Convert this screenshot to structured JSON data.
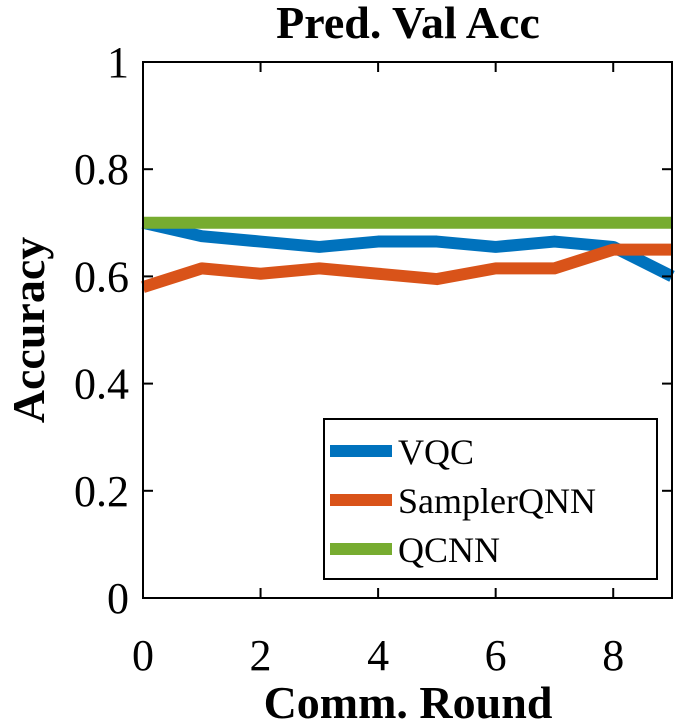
{
  "chart_data": {
    "type": "line",
    "title": "Pred. Val Acc",
    "xlabel": "Comm. Round",
    "ylabel": "Accuracy",
    "xlim": [
      0,
      9
    ],
    "ylim": [
      0,
      1
    ],
    "xticks": [
      0,
      2,
      4,
      6,
      8
    ],
    "xtick_labels": [
      "0",
      "2",
      "4",
      "6",
      "8"
    ],
    "yticks": [
      0,
      0.2,
      0.4,
      0.6,
      0.8,
      1
    ],
    "ytick_labels": [
      "0",
      "0.2",
      "0.4",
      "0.6",
      "0.8",
      "1"
    ],
    "grid": false,
    "legend_position": "bottom-right",
    "x": [
      0,
      1,
      2,
      3,
      4,
      5,
      6,
      7,
      8,
      9
    ],
    "series": [
      {
        "name": "VQC",
        "color": "#0072BD",
        "values": [
          0.7,
          0.675,
          0.665,
          0.655,
          0.665,
          0.665,
          0.655,
          0.665,
          0.655,
          0.6
        ]
      },
      {
        "name": "SamplerQNN",
        "color": "#D95319",
        "values": [
          0.58,
          0.615,
          0.605,
          0.615,
          0.605,
          0.595,
          0.615,
          0.615,
          0.65,
          0.65
        ]
      },
      {
        "name": "QCNN",
        "color": "#77AC30",
        "values": [
          0.7,
          0.7,
          0.7,
          0.7,
          0.7,
          0.7,
          0.7,
          0.7,
          0.7,
          0.7
        ]
      }
    ]
  }
}
